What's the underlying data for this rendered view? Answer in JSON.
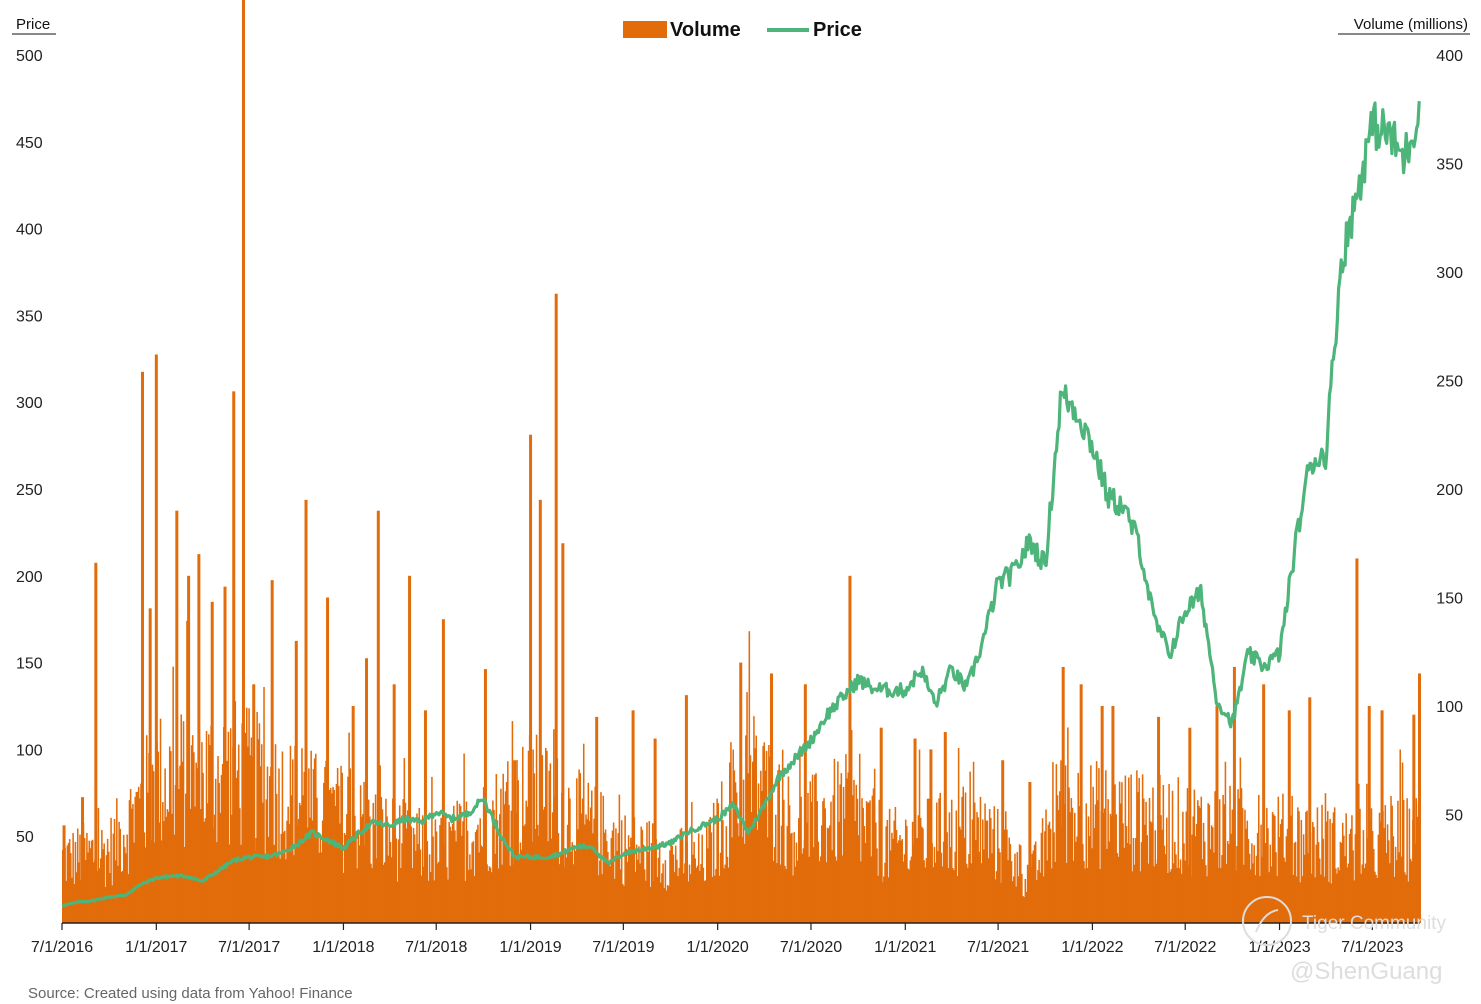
{
  "chart_data": {
    "type": "bar+line",
    "legend": {
      "position": "top-center",
      "entries": [
        "Volume",
        "Price"
      ]
    },
    "colors": {
      "volume": "#E36C0A",
      "price": "#4DB47A",
      "axis": "#222222"
    },
    "left_axis": {
      "label": "Price",
      "ticks": [
        "500",
        "450",
        "400",
        "350",
        "300",
        "250",
        "200",
        "150",
        "100",
        "50"
      ],
      "range": [
        0,
        500
      ]
    },
    "right_axis": {
      "label": "Volume (millions)",
      "ticks": [
        "400",
        "350",
        "300",
        "250",
        "200",
        "150",
        "100",
        "50"
      ],
      "range": [
        0,
        400
      ]
    },
    "x_axis": {
      "range": [
        "2016-07-01",
        "2023-10-02"
      ],
      "tick_labels": [
        "7/1/2016",
        "1/1/2017",
        "7/1/2017",
        "1/1/2018",
        "7/1/2018",
        "1/1/2019",
        "7/1/2019",
        "1/1/2020",
        "7/1/2020",
        "1/1/2021",
        "7/1/2021",
        "1/1/2022",
        "7/1/2022",
        "1/1/2023",
        "7/1/2023"
      ]
    },
    "series": [
      {
        "name": "Price",
        "axis": "left",
        "points": [
          [
            "2016-07-01",
            10
          ],
          [
            "2016-08-01",
            12
          ],
          [
            "2016-09-01",
            13
          ],
          [
            "2016-10-01",
            15
          ],
          [
            "2016-11-01",
            16
          ],
          [
            "2016-12-01",
            22
          ],
          [
            "2017-01-01",
            26
          ],
          [
            "2017-02-01",
            27
          ],
          [
            "2017-03-01",
            27
          ],
          [
            "2017-04-01",
            24
          ],
          [
            "2017-05-01",
            30
          ],
          [
            "2017-06-01",
            36
          ],
          [
            "2017-07-01",
            38
          ],
          [
            "2017-08-01",
            38
          ],
          [
            "2017-09-01",
            40
          ],
          [
            "2017-10-01",
            45
          ],
          [
            "2017-11-01",
            52
          ],
          [
            "2017-12-01",
            48
          ],
          [
            "2018-01-01",
            43
          ],
          [
            "2018-02-01",
            52
          ],
          [
            "2018-03-01",
            58
          ],
          [
            "2018-04-01",
            56
          ],
          [
            "2018-05-01",
            60
          ],
          [
            "2018-06-01",
            58
          ],
          [
            "2018-07-01",
            64
          ],
          [
            "2018-08-01",
            60
          ],
          [
            "2018-09-01",
            63
          ],
          [
            "2018-10-01",
            72
          ],
          [
            "2018-11-01",
            52
          ],
          [
            "2018-12-01",
            38
          ],
          [
            "2019-01-01",
            38
          ],
          [
            "2019-02-01",
            38
          ],
          [
            "2019-03-01",
            40
          ],
          [
            "2019-04-01",
            44
          ],
          [
            "2019-05-01",
            44
          ],
          [
            "2019-06-01",
            34
          ],
          [
            "2019-07-01",
            40
          ],
          [
            "2019-08-01",
            42
          ],
          [
            "2019-09-01",
            44
          ],
          [
            "2019-10-01",
            46
          ],
          [
            "2019-11-01",
            52
          ],
          [
            "2019-12-01",
            56
          ],
          [
            "2020-01-01",
            60
          ],
          [
            "2020-02-01",
            68
          ],
          [
            "2020-03-01",
            52
          ],
          [
            "2020-04-01",
            68
          ],
          [
            "2020-05-01",
            85
          ],
          [
            "2020-06-01",
            95
          ],
          [
            "2020-07-01",
            105
          ],
          [
            "2020-08-01",
            120
          ],
          [
            "2020-09-01",
            130
          ],
          [
            "2020-10-01",
            140
          ],
          [
            "2020-11-01",
            135
          ],
          [
            "2020-12-01",
            134
          ],
          [
            "2021-01-01",
            134
          ],
          [
            "2021-02-01",
            146
          ],
          [
            "2021-03-01",
            126
          ],
          [
            "2021-04-01",
            146
          ],
          [
            "2021-05-01",
            135
          ],
          [
            "2021-06-01",
            162
          ],
          [
            "2021-07-01",
            196
          ],
          [
            "2021-08-01",
            202
          ],
          [
            "2021-09-01",
            220
          ],
          [
            "2021-10-01",
            206
          ],
          [
            "2021-11-01",
            305
          ],
          [
            "2021-12-01",
            295
          ],
          [
            "2022-01-01",
            275
          ],
          [
            "2022-02-01",
            245
          ],
          [
            "2022-03-01",
            240
          ],
          [
            "2022-04-01",
            220
          ],
          [
            "2022-05-01",
            175
          ],
          [
            "2022-06-01",
            155
          ],
          [
            "2022-07-01",
            180
          ],
          [
            "2022-08-01",
            190
          ],
          [
            "2022-09-01",
            128
          ],
          [
            "2022-10-01",
            115
          ],
          [
            "2022-11-01",
            155
          ],
          [
            "2022-12-01",
            148
          ],
          [
            "2023-01-01",
            155
          ],
          [
            "2023-02-01",
            218
          ],
          [
            "2023-03-01",
            265
          ],
          [
            "2023-04-01",
            270
          ],
          [
            "2023-05-01",
            380
          ],
          [
            "2023-06-01",
            420
          ],
          [
            "2023-07-01",
            460
          ],
          [
            "2023-08-01",
            455
          ],
          [
            "2023-09-01",
            440
          ],
          [
            "2023-10-02",
            470
          ]
        ]
      },
      {
        "name": "Volume",
        "axis": "right",
        "base_levels": [
          [
            "2016-07-01",
            40
          ],
          [
            "2016-10-01",
            46
          ],
          [
            "2017-01-01",
            90
          ],
          [
            "2017-06-01",
            95
          ],
          [
            "2018-01-01",
            65
          ],
          [
            "2018-07-01",
            45
          ],
          [
            "2018-10-01",
            62
          ],
          [
            "2019-01-01",
            82
          ],
          [
            "2019-07-01",
            48
          ],
          [
            "2019-12-01",
            38
          ],
          [
            "2020-03-01",
            95
          ],
          [
            "2020-06-01",
            58
          ],
          [
            "2020-09-01",
            72
          ],
          [
            "2020-12-01",
            48
          ],
          [
            "2021-03-01",
            55
          ],
          [
            "2021-06-01",
            58
          ],
          [
            "2021-09-01",
            28
          ],
          [
            "2021-11-01",
            72
          ],
          [
            "2022-06-01",
            62
          ],
          [
            "2022-10-01",
            58
          ],
          [
            "2023-01-01",
            55
          ],
          [
            "2023-06-01",
            48
          ],
          [
            "2023-10-02",
            55
          ]
        ],
        "spikes": [
          [
            "2016-07-05",
            45
          ],
          [
            "2016-08-10",
            58
          ],
          [
            "2016-09-05",
            166
          ],
          [
            "2016-12-05",
            254
          ],
          [
            "2016-12-20",
            145
          ],
          [
            "2017-01-01",
            262
          ],
          [
            "2017-02-10",
            190
          ],
          [
            "2017-03-05",
            160
          ],
          [
            "2017-03-25",
            170
          ],
          [
            "2017-04-20",
            148
          ],
          [
            "2017-05-15",
            155
          ],
          [
            "2017-06-01",
            245
          ],
          [
            "2017-06-20",
            430
          ],
          [
            "2017-07-10",
            110
          ],
          [
            "2017-08-15",
            158
          ],
          [
            "2017-10-01",
            130
          ],
          [
            "2017-10-20",
            195
          ],
          [
            "2017-12-01",
            150
          ],
          [
            "2018-01-20",
            100
          ],
          [
            "2018-02-15",
            122
          ],
          [
            "2018-03-10",
            190
          ],
          [
            "2018-04-10",
            110
          ],
          [
            "2018-05-10",
            160
          ],
          [
            "2018-06-10",
            98
          ],
          [
            "2018-07-15",
            140
          ],
          [
            "2018-10-05",
            117
          ],
          [
            "2018-12-01",
            75
          ],
          [
            "2019-01-01",
            225
          ],
          [
            "2019-01-20",
            195
          ],
          [
            "2019-02-20",
            290
          ],
          [
            "2019-03-05",
            175
          ],
          [
            "2019-05-10",
            95
          ],
          [
            "2019-07-20",
            98
          ],
          [
            "2019-09-01",
            85
          ],
          [
            "2019-11-01",
            105
          ],
          [
            "2020-02-15",
            120
          ],
          [
            "2020-04-15",
            115
          ],
          [
            "2020-06-20",
            110
          ],
          [
            "2020-09-15",
            160
          ],
          [
            "2020-11-15",
            90
          ],
          [
            "2021-01-20",
            85
          ],
          [
            "2021-02-20",
            80
          ],
          [
            "2021-03-20",
            88
          ],
          [
            "2021-07-10",
            75
          ],
          [
            "2021-09-01",
            65
          ],
          [
            "2021-11-05",
            118
          ],
          [
            "2021-12-10",
            110
          ],
          [
            "2022-01-20",
            100
          ],
          [
            "2022-02-10",
            100
          ],
          [
            "2022-05-10",
            95
          ],
          [
            "2022-07-10",
            90
          ],
          [
            "2022-09-01",
            100
          ],
          [
            "2022-10-05",
            118
          ],
          [
            "2022-12-01",
            110
          ],
          [
            "2023-01-20",
            98
          ],
          [
            "2023-03-01",
            104
          ],
          [
            "2023-06-01",
            168
          ],
          [
            "2023-06-25",
            100
          ],
          [
            "2023-07-20",
            98
          ],
          [
            "2023-09-20",
            96
          ],
          [
            "2023-10-01",
            115
          ]
        ]
      }
    ],
    "source": "Source: Created using data from Yahoo! Finance"
  },
  "watermark": {
    "line1": "Tiger Community",
    "line2": "@ShenGuang"
  }
}
